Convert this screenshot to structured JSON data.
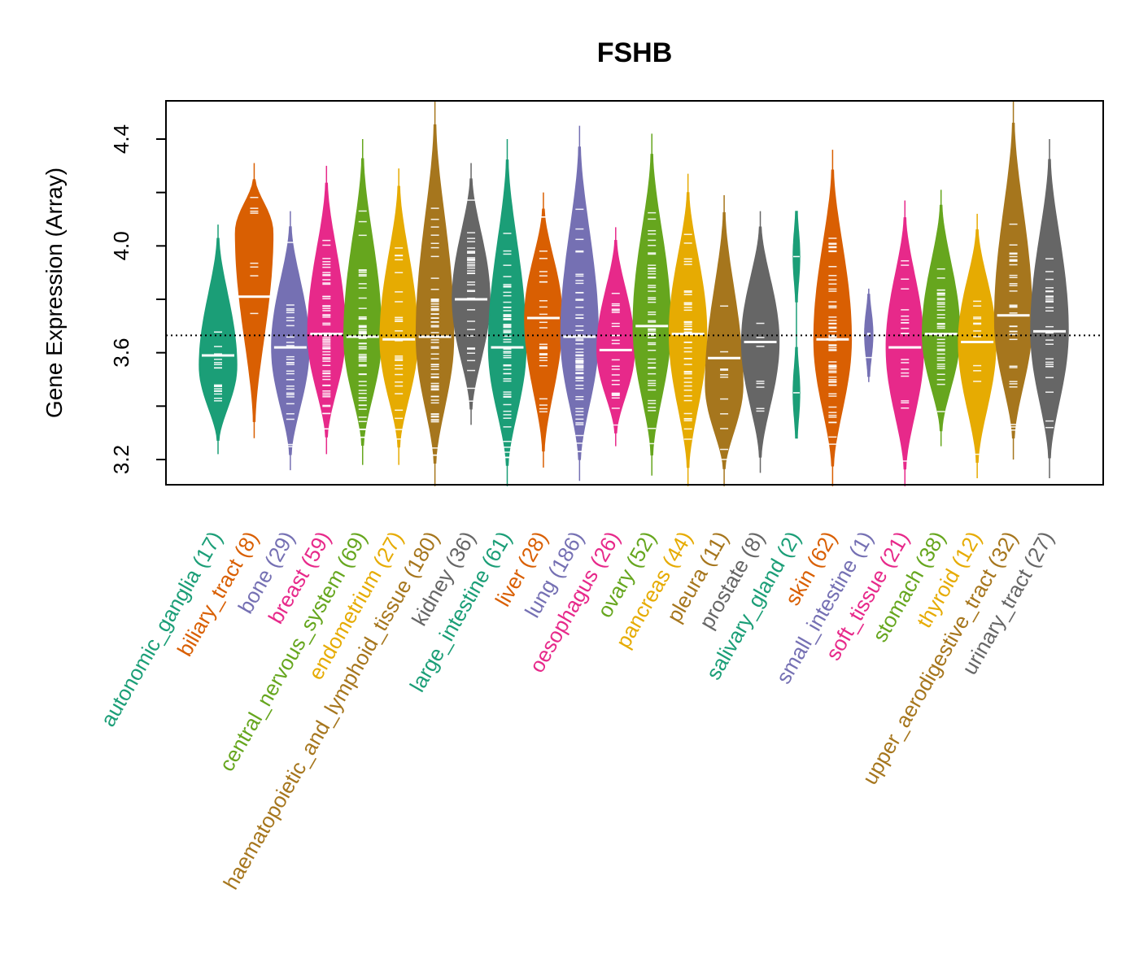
{
  "chart_data": {
    "type": "violin",
    "title": "FSHB",
    "xlabel": "",
    "ylabel": "Gene Expression (Array)",
    "ylim": [
      3.1,
      4.54
    ],
    "yticks": [
      3.2,
      3.4,
      3.6,
      3.8,
      4.0,
      4.2,
      4.4
    ],
    "ytick_labels": [
      "3.2",
      "",
      "3.6",
      "",
      "4.0",
      "",
      "4.4"
    ],
    "reference_line": 3.665,
    "grid": false,
    "legend": "none",
    "categories": [
      {
        "name": "autonomic_ganglia",
        "n": 17,
        "label": "autonomic_ganglia (17)",
        "color": "#1B9E77",
        "median": 3.59,
        "min": 3.22,
        "max": 4.08,
        "mode": 3.55
      },
      {
        "name": "biliary_tract",
        "n": 8,
        "label": "biliary_tract (8)",
        "color": "#D95F02",
        "median": 3.81,
        "min": 3.28,
        "max": 4.31,
        "mode": 4.05
      },
      {
        "name": "bone",
        "n": 29,
        "label": "bone (29)",
        "color": "#7570B3",
        "median": 3.62,
        "min": 3.16,
        "max": 4.13,
        "mode": 3.62
      },
      {
        "name": "breast",
        "n": 59,
        "label": "breast (59)",
        "color": "#E7298A",
        "median": 3.67,
        "min": 3.22,
        "max": 4.3,
        "mode": 3.67
      },
      {
        "name": "central_nervous_system",
        "n": 69,
        "label": "central_nervous_system (69)",
        "color": "#66A61E",
        "median": 3.66,
        "min": 3.18,
        "max": 4.4,
        "mode": 3.66
      },
      {
        "name": "endometrium",
        "n": 27,
        "label": "endometrium (27)",
        "color": "#E6AB02",
        "median": 3.65,
        "min": 3.18,
        "max": 4.29,
        "mode": 3.65
      },
      {
        "name": "haematopoietic_and_lymphoid_tissue",
        "n": 180,
        "label": "haematopoietic_and_lymphoid_tissue (180)",
        "color": "#A6761D",
        "median": 3.66,
        "min": 3.1,
        "max": 4.54,
        "mode": 3.66
      },
      {
        "name": "kidney",
        "n": 36,
        "label": "kidney (36)",
        "color": "#666666",
        "median": 3.8,
        "min": 3.33,
        "max": 4.31,
        "mode": 3.8
      },
      {
        "name": "large_intestine",
        "n": 61,
        "label": "large_intestine (61)",
        "color": "#1B9E77",
        "median": 3.62,
        "min": 3.1,
        "max": 4.4,
        "mode": 3.62
      },
      {
        "name": "liver",
        "n": 28,
        "label": "liver (28)",
        "color": "#D95F02",
        "median": 3.73,
        "min": 3.17,
        "max": 4.2,
        "mode": 3.73
      },
      {
        "name": "lung",
        "n": 186,
        "label": "lung (186)",
        "color": "#7570B3",
        "median": 3.66,
        "min": 3.12,
        "max": 4.45,
        "mode": 3.66
      },
      {
        "name": "oesophagus",
        "n": 26,
        "label": "oesophagus (26)",
        "color": "#E7298A",
        "median": 3.61,
        "min": 3.25,
        "max": 4.07,
        "mode": 3.61
      },
      {
        "name": "ovary",
        "n": 52,
        "label": "ovary (52)",
        "color": "#66A61E",
        "median": 3.7,
        "min": 3.14,
        "max": 4.42,
        "mode": 3.7
      },
      {
        "name": "pancreas",
        "n": 44,
        "label": "pancreas (44)",
        "color": "#E6AB02",
        "median": 3.67,
        "min": 3.1,
        "max": 4.27,
        "mode": 3.67
      },
      {
        "name": "pleura",
        "n": 11,
        "label": "pleura (11)",
        "color": "#A6761D",
        "median": 3.58,
        "min": 3.1,
        "max": 4.19,
        "mode": 3.48
      },
      {
        "name": "prostate",
        "n": 8,
        "label": "prostate (8)",
        "color": "#666666",
        "median": 3.64,
        "min": 3.15,
        "max": 4.13,
        "mode": 3.64
      },
      {
        "name": "salivary_gland",
        "n": 2,
        "label": "salivary_gland (2)",
        "color": "#1B9E77",
        "median": null,
        "min": 3.3,
        "max": 4.12,
        "mode": null,
        "points": [
          3.45,
          3.96
        ]
      },
      {
        "name": "skin",
        "n": 62,
        "label": "skin (62)",
        "color": "#D95F02",
        "median": 3.65,
        "min": 3.1,
        "max": 4.36,
        "mode": 3.65
      },
      {
        "name": "small_intestine",
        "n": 1,
        "label": "small_intestine (1)",
        "color": "#7570B3",
        "median": 3.67,
        "min": 3.49,
        "max": 3.84,
        "mode": 3.67
      },
      {
        "name": "soft_tissue",
        "n": 21,
        "label": "soft_tissue (21)",
        "color": "#E7298A",
        "median": 3.62,
        "min": 3.1,
        "max": 4.17,
        "mode": 3.62
      },
      {
        "name": "stomach",
        "n": 38,
        "label": "stomach (38)",
        "color": "#66A61E",
        "median": 3.67,
        "min": 3.25,
        "max": 4.21,
        "mode": 3.67
      },
      {
        "name": "thyroid",
        "n": 12,
        "label": "thyroid (12)",
        "color": "#E6AB02",
        "median": 3.64,
        "min": 3.13,
        "max": 4.12,
        "mode": 3.64
      },
      {
        "name": "upper_aerodigestive_tract",
        "n": 32,
        "label": "upper_aerodigestive_tract (32)",
        "color": "#A6761D",
        "median": 3.74,
        "min": 3.2,
        "max": 4.54,
        "mode": 3.72
      },
      {
        "name": "urinary_tract",
        "n": 27,
        "label": "urinary_tract (27)",
        "color": "#666666",
        "median": 3.68,
        "min": 3.13,
        "max": 4.4,
        "mode": 3.68
      }
    ]
  }
}
